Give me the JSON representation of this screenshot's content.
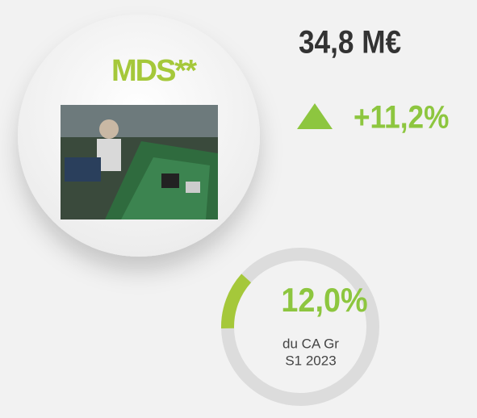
{
  "logo": "MDS**",
  "revenue": "34,8 M€",
  "growth": "+11,2%",
  "share": {
    "label": "12,0%",
    "value": 12.0,
    "caption": [
      "du CA Gr",
      "S1 2023"
    ]
  }
}
